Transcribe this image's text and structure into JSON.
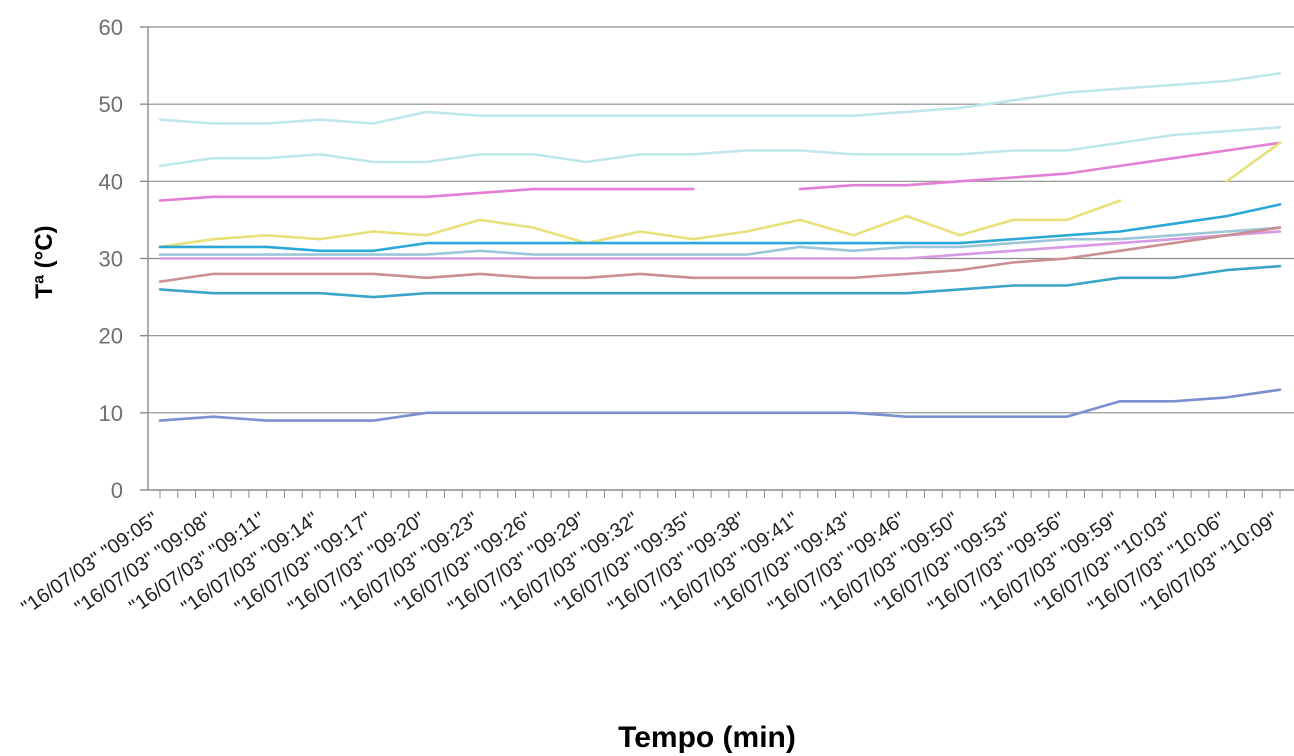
{
  "chart_data": {
    "type": "line",
    "title": "",
    "xlabel": "Tempo (min)",
    "ylabel": "Tª (°C)",
    "ylim": [
      0,
      60
    ],
    "yticks": [
      0,
      10,
      20,
      30,
      40,
      50,
      60
    ],
    "grid": true,
    "legend": "none",
    "categories": [
      "\"16/07/03\" \"09:05\"",
      "\"16/07/03\" \"09:08\"",
      "\"16/07/03\" \"09:11\"",
      "\"16/07/03\" \"09:14\"",
      "\"16/07/03\" \"09:17\"",
      "\"16/07/03\" \"09:20\"",
      "\"16/07/03\" \"09:23\"",
      "\"16/07/03\" \"09:26\"",
      "\"16/07/03\" \"09:29\"",
      "\"16/07/03\" \"09:32\"",
      "\"16/07/03\" \"09:35\"",
      "\"16/07/03\" \"09:38\"",
      "\"16/07/03\" \"09:41\"",
      "\"16/07/03\" \"09:43\"",
      "\"16/07/03\" \"09:46\"",
      "\"16/07/03\" \"09:50\"",
      "\"16/07/03\" \"09:53\"",
      "\"16/07/03\" \"09:56\"",
      "\"16/07/03\" \"09:59\"",
      "\"16/07/03\" \"10:03\"",
      "\"16/07/03\" \"10:06\"",
      "\"16/07/03\" \"10:09\""
    ],
    "series": [
      {
        "color": "#bfe6ec",
        "values": [
          48,
          47.5,
          47.5,
          48,
          47.5,
          49,
          48.5,
          48.5,
          48.5,
          48.5,
          48.5,
          48.5,
          48.5,
          48.5,
          49,
          49.5,
          50.5,
          51.5,
          52,
          52.5,
          53,
          54
        ]
      },
      {
        "color": "#bfe6ec",
        "values": [
          42,
          43,
          43,
          43.5,
          42.5,
          42.5,
          43.5,
          43.5,
          42.5,
          43.5,
          43.5,
          44,
          44,
          43.5,
          43.5,
          43.5,
          44,
          44,
          45,
          46,
          46.5,
          47
        ]
      },
      {
        "color": "#e37fd6",
        "values": [
          37.5,
          38,
          38,
          38,
          38,
          38,
          38.5,
          39,
          39,
          39,
          39,
          null,
          39,
          39.5,
          39.5,
          40,
          40.5,
          41,
          42,
          43,
          44,
          45
        ]
      },
      {
        "color": "#e8e07a",
        "values": [
          31.5,
          32.5,
          33,
          32.5,
          33.5,
          33,
          35,
          34,
          32,
          33.5,
          32.5,
          33.5,
          35,
          33,
          35.5,
          33,
          35,
          35,
          37.5,
          null,
          40,
          45
        ]
      },
      {
        "color": "#2ca8d8",
        "values": [
          31.5,
          31.5,
          31.5,
          31,
          31,
          32,
          32,
          32,
          32,
          32,
          32,
          32,
          32,
          32,
          32,
          32,
          32.5,
          33,
          33.5,
          34.5,
          35.5,
          37
        ]
      },
      {
        "color": "#9cc6d9",
        "values": [
          30.5,
          30.5,
          30.5,
          30.5,
          30.5,
          30.5,
          31,
          30.5,
          30.5,
          30.5,
          30.5,
          30.5,
          31.5,
          31,
          31.5,
          31.5,
          32,
          32.5,
          32.5,
          33,
          33.5,
          34
        ]
      },
      {
        "color": "#d899e4",
        "values": [
          30,
          30,
          30,
          30,
          30,
          30,
          30,
          30,
          30,
          30,
          30,
          30,
          30,
          30,
          30,
          30.5,
          31,
          31.5,
          32,
          32.5,
          33,
          33.5
        ]
      },
      {
        "color": "#c98f92",
        "values": [
          27,
          28,
          28,
          28,
          28,
          27.5,
          28,
          27.5,
          27.5,
          28,
          27.5,
          27.5,
          27.5,
          27.5,
          28,
          28.5,
          29.5,
          30,
          31,
          32,
          33,
          34
        ]
      },
      {
        "color": "#3aa5c9",
        "values": [
          26,
          25.5,
          25.5,
          25.5,
          25,
          25.5,
          25.5,
          25.5,
          25.5,
          25.5,
          25.5,
          25.5,
          25.5,
          25.5,
          25.5,
          26,
          26.5,
          26.5,
          27.5,
          27.5,
          28.5,
          29
        ]
      },
      {
        "color": "#7b8fd1",
        "values": [
          9,
          9.5,
          9,
          9,
          9,
          10,
          10,
          10,
          10,
          10,
          10,
          10,
          10,
          10,
          9.5,
          9.5,
          9.5,
          9.5,
          11.5,
          11.5,
          12,
          13
        ]
      }
    ]
  }
}
